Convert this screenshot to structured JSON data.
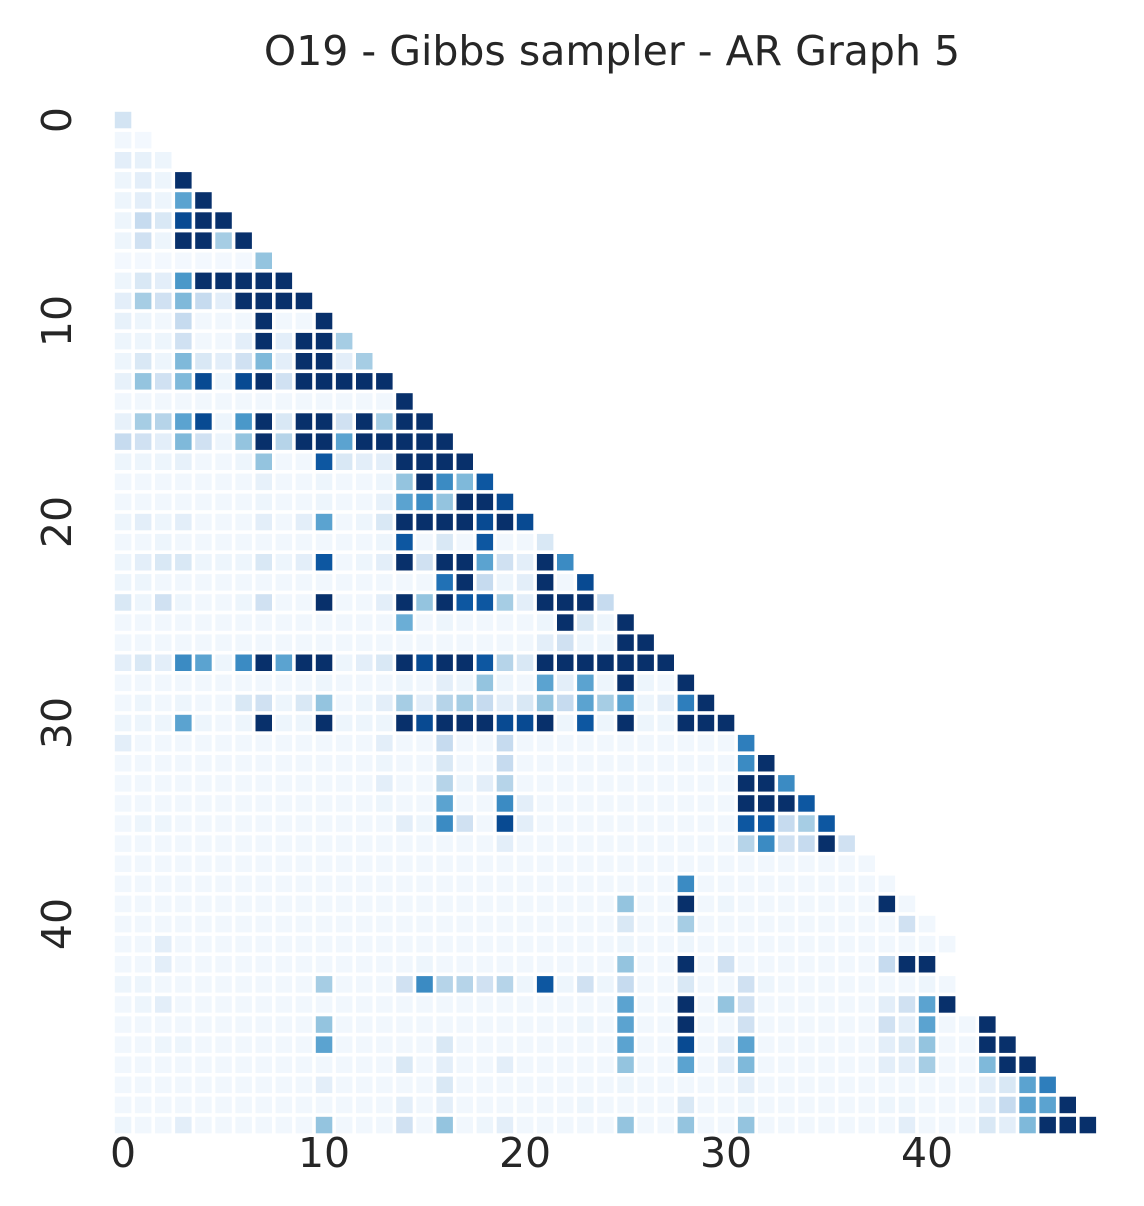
{
  "chart_data": {
    "type": "heatmap",
    "title": "O19 - Gibbs sampler - AR Graph 5",
    "xlabel": "",
    "ylabel": "",
    "n": 49,
    "mask": "upper-triangle",
    "colormap": "Blues",
    "color_range": [
      0,
      1
    ],
    "grid": false,
    "colorbar": false,
    "x_ticks": [
      "0",
      "10",
      "20",
      "30",
      "40"
    ],
    "y_ticks": [
      "0",
      "10",
      "20",
      "30",
      "40"
    ],
    "matrix_note": "values in [0,1]; row i has i+1 entries (lower triangle incl. diagonal)",
    "matrix": [
      [
        0.18
      ],
      [
        0.03,
        0.02
      ],
      [
        0.1,
        0.08,
        0.05
      ],
      [
        0.05,
        0.1,
        0.05,
        1.0
      ],
      [
        0.05,
        0.1,
        0.05,
        0.55,
        1.0
      ],
      [
        0.05,
        0.25,
        0.15,
        0.9,
        1.0,
        1.0
      ],
      [
        0.05,
        0.2,
        0.05,
        1.0,
        1.0,
        0.35,
        1.0
      ],
      [
        0.02,
        0.02,
        0.02,
        0.02,
        0.02,
        0.02,
        0.02,
        0.4
      ],
      [
        0.05,
        0.15,
        0.1,
        0.6,
        1.0,
        1.0,
        1.0,
        1.0,
        1.0
      ],
      [
        0.1,
        0.35,
        0.2,
        0.45,
        0.25,
        0.1,
        1.0,
        1.0,
        1.0,
        1.0
      ],
      [
        0.08,
        0.05,
        0.03,
        0.25,
        0.03,
        0.03,
        0.03,
        1.0,
        0.03,
        0.03,
        1.0
      ],
      [
        0.05,
        0.05,
        0.05,
        0.2,
        0.03,
        0.03,
        0.1,
        1.0,
        0.1,
        1.0,
        1.0,
        0.35
      ],
      [
        0.05,
        0.15,
        0.05,
        0.45,
        0.15,
        0.1,
        0.2,
        0.45,
        0.1,
        1.0,
        1.0,
        0.1,
        0.35
      ],
      [
        0.08,
        0.4,
        0.2,
        0.45,
        0.9,
        0.05,
        0.9,
        1.0,
        0.2,
        1.0,
        1.0,
        1.0,
        1.0,
        1.0
      ],
      [
        0.03,
        0.03,
        0.03,
        0.03,
        0.03,
        0.03,
        0.03,
        0.03,
        0.03,
        0.03,
        0.03,
        0.03,
        0.03,
        0.03,
        1.0
      ],
      [
        0.08,
        0.35,
        0.3,
        0.55,
        0.9,
        0.05,
        0.6,
        1.0,
        0.15,
        1.0,
        1.0,
        0.2,
        1.0,
        0.35,
        1.0,
        1.0
      ],
      [
        0.25,
        0.2,
        0.1,
        0.45,
        0.2,
        0.05,
        0.4,
        1.0,
        0.3,
        1.0,
        1.0,
        0.55,
        1.0,
        1.0,
        1.0,
        1.0,
        1.0
      ],
      [
        0.05,
        0.05,
        0.05,
        0.08,
        0.03,
        0.03,
        0.05,
        0.4,
        0.03,
        0.03,
        0.85,
        0.15,
        0.1,
        0.1,
        1.0,
        1.0,
        1.0,
        1.0
      ],
      [
        0.03,
        0.03,
        0.03,
        0.03,
        0.03,
        0.03,
        0.03,
        0.08,
        0.03,
        0.03,
        0.05,
        0.03,
        0.03,
        0.05,
        0.4,
        1.0,
        0.65,
        0.45,
        0.85
      ],
      [
        0.03,
        0.03,
        0.03,
        0.03,
        0.03,
        0.03,
        0.03,
        0.05,
        0.03,
        0.03,
        0.05,
        0.03,
        0.03,
        0.08,
        0.55,
        0.65,
        0.4,
        1.0,
        1.0,
        0.9
      ],
      [
        0.05,
        0.1,
        0.05,
        0.1,
        0.03,
        0.03,
        0.03,
        0.1,
        0.03,
        0.1,
        0.55,
        0.03,
        0.05,
        0.15,
        1.0,
        1.0,
        1.0,
        1.0,
        0.9,
        1.0,
        0.9
      ],
      [
        0.03,
        0.03,
        0.05,
        0.03,
        0.03,
        0.03,
        0.03,
        0.03,
        0.03,
        0.03,
        0.03,
        0.03,
        0.03,
        0.05,
        0.85,
        0.03,
        0.15,
        0.03,
        0.85,
        0.03,
        0.03,
        0.15
      ],
      [
        0.05,
        0.1,
        0.15,
        0.15,
        0.05,
        0.05,
        0.05,
        0.15,
        0.05,
        0.1,
        0.85,
        0.03,
        0.05,
        0.1,
        1.0,
        0.2,
        1.0,
        1.0,
        0.55,
        0.2,
        0.1,
        1.0,
        0.65
      ],
      [
        0.05,
        0.05,
        0.03,
        0.03,
        0.03,
        0.03,
        0.03,
        0.03,
        0.03,
        0.03,
        0.03,
        0.03,
        0.03,
        0.03,
        0.03,
        0.03,
        0.75,
        1.0,
        0.25,
        0.05,
        0.1,
        1.0,
        0.03,
        0.9
      ],
      [
        0.15,
        0.05,
        0.2,
        0.05,
        0.03,
        0.03,
        0.05,
        0.2,
        0.03,
        0.03,
        1.0,
        0.03,
        0.03,
        0.1,
        1.0,
        0.4,
        1.0,
        0.85,
        0.85,
        0.35,
        0.1,
        1.0,
        1.0,
        1.0,
        0.25
      ],
      [
        0.03,
        0.03,
        0.03,
        0.03,
        0.03,
        0.03,
        0.03,
        0.03,
        0.03,
        0.03,
        0.03,
        0.03,
        0.03,
        0.03,
        0.5,
        0.03,
        0.05,
        0.03,
        0.03,
        0.03,
        0.03,
        0.05,
        1.0,
        0.15,
        0.05,
        1.0
      ],
      [
        0.03,
        0.03,
        0.03,
        0.03,
        0.03,
        0.03,
        0.03,
        0.03,
        0.03,
        0.03,
        0.03,
        0.03,
        0.03,
        0.03,
        0.03,
        0.03,
        0.03,
        0.03,
        0.03,
        0.03,
        0.03,
        0.1,
        0.2,
        0.05,
        0.05,
        1.0,
        1.0
      ],
      [
        0.1,
        0.15,
        0.1,
        0.65,
        0.55,
        0.05,
        0.65,
        1.0,
        0.55,
        1.0,
        1.0,
        0.05,
        0.1,
        0.15,
        1.0,
        0.9,
        1.0,
        1.0,
        0.85,
        0.3,
        0.15,
        1.0,
        1.0,
        1.0,
        1.0,
        1.0,
        1.0,
        1.0
      ],
      [
        0.03,
        0.03,
        0.03,
        0.03,
        0.03,
        0.03,
        0.03,
        0.03,
        0.03,
        0.03,
        0.05,
        0.03,
        0.03,
        0.03,
        0.05,
        0.03,
        0.1,
        0.05,
        0.4,
        0.05,
        0.03,
        0.55,
        0.1,
        0.55,
        0.05,
        1.0,
        0.05,
        0.03,
        1.0
      ],
      [
        0.03,
        0.05,
        0.03,
        0.05,
        0.03,
        0.03,
        0.15,
        0.2,
        0.05,
        0.15,
        0.4,
        0.03,
        0.05,
        0.1,
        0.35,
        0.1,
        0.3,
        0.35,
        0.25,
        0.1,
        0.15,
        0.4,
        0.25,
        0.55,
        0.35,
        0.55,
        0.05,
        0.1,
        0.7,
        1.0
      ],
      [
        0.05,
        0.05,
        0.05,
        0.55,
        0.05,
        0.03,
        0.05,
        1.0,
        0.05,
        0.05,
        1.0,
        0.05,
        0.05,
        0.05,
        1.0,
        0.9,
        1.0,
        1.0,
        1.0,
        0.9,
        0.9,
        1.0,
        0.05,
        0.85,
        0.05,
        1.0,
        0.05,
        0.05,
        1.0,
        1.0,
        1.0
      ],
      [
        0.1,
        0.03,
        0.03,
        0.03,
        0.03,
        0.03,
        0.03,
        0.03,
        0.03,
        0.03,
        0.03,
        0.03,
        0.03,
        0.1,
        0.03,
        0.03,
        0.25,
        0.03,
        0.03,
        0.25,
        0.03,
        0.03,
        0.03,
        0.03,
        0.03,
        0.03,
        0.03,
        0.03,
        0.03,
        0.03,
        0.03,
        0.7
      ],
      [
        0.03,
        0.03,
        0.03,
        0.03,
        0.03,
        0.03,
        0.03,
        0.03,
        0.03,
        0.03,
        0.03,
        0.03,
        0.03,
        0.05,
        0.03,
        0.03,
        0.15,
        0.03,
        0.03,
        0.25,
        0.03,
        0.03,
        0.03,
        0.03,
        0.03,
        0.03,
        0.03,
        0.03,
        0.03,
        0.03,
        0.03,
        0.65,
        1.0
      ],
      [
        0.03,
        0.03,
        0.03,
        0.03,
        0.03,
        0.03,
        0.03,
        0.03,
        0.03,
        0.03,
        0.03,
        0.03,
        0.03,
        0.1,
        0.03,
        0.03,
        0.3,
        0.05,
        0.1,
        0.3,
        0.03,
        0.03,
        0.03,
        0.03,
        0.03,
        0.03,
        0.03,
        0.03,
        0.03,
        0.03,
        0.03,
        1.0,
        1.0,
        0.65
      ],
      [
        0.03,
        0.03,
        0.03,
        0.03,
        0.03,
        0.03,
        0.03,
        0.03,
        0.03,
        0.03,
        0.03,
        0.03,
        0.03,
        0.05,
        0.03,
        0.03,
        0.55,
        0.03,
        0.03,
        0.65,
        0.1,
        0.03,
        0.03,
        0.03,
        0.03,
        0.03,
        0.03,
        0.03,
        0.03,
        0.03,
        0.03,
        1.0,
        1.0,
        1.0,
        0.85
      ],
      [
        0.03,
        0.05,
        0.05,
        0.03,
        0.03,
        0.03,
        0.03,
        0.03,
        0.03,
        0.03,
        0.03,
        0.03,
        0.03,
        0.03,
        0.1,
        0.05,
        0.65,
        0.2,
        0.03,
        0.9,
        0.1,
        0.03,
        0.03,
        0.03,
        0.03,
        0.03,
        0.03,
        0.03,
        0.03,
        0.03,
        0.03,
        0.85,
        0.85,
        0.25,
        0.35,
        0.85
      ],
      [
        0.03,
        0.03,
        0.03,
        0.03,
        0.03,
        0.03,
        0.03,
        0.03,
        0.03,
        0.03,
        0.03,
        0.03,
        0.03,
        0.03,
        0.03,
        0.03,
        0.03,
        0.03,
        0.03,
        0.1,
        0.03,
        0.03,
        0.03,
        0.03,
        0.03,
        0.03,
        0.03,
        0.03,
        0.03,
        0.03,
        0.03,
        0.3,
        0.65,
        0.2,
        0.25,
        1.0,
        0.2
      ],
      [
        0.03,
        0.03,
        0.03,
        0.03,
        0.03,
        0.03,
        0.03,
        0.03,
        0.03,
        0.03,
        0.03,
        0.03,
        0.03,
        0.03,
        0.03,
        0.03,
        0.03,
        0.03,
        0.03,
        0.03,
        0.03,
        0.03,
        0.03,
        0.03,
        0.03,
        0.03,
        0.03,
        0.03,
        0.03,
        0.03,
        0.03,
        0.03,
        0.03,
        0.03,
        0.03,
        0.03,
        0.03,
        0.03
      ],
      [
        0.03,
        0.03,
        0.03,
        0.03,
        0.03,
        0.03,
        0.03,
        0.03,
        0.03,
        0.03,
        0.03,
        0.03,
        0.03,
        0.03,
        0.03,
        0.03,
        0.03,
        0.03,
        0.03,
        0.03,
        0.03,
        0.03,
        0.03,
        0.03,
        0.03,
        0.03,
        0.03,
        0.03,
        0.65,
        0.03,
        0.03,
        0.03,
        0.03,
        0.03,
        0.03,
        0.03,
        0.03,
        0.03,
        0.03
      ],
      [
        0.03,
        0.03,
        0.03,
        0.03,
        0.03,
        0.03,
        0.03,
        0.03,
        0.03,
        0.03,
        0.03,
        0.03,
        0.03,
        0.03,
        0.03,
        0.03,
        0.03,
        0.03,
        0.03,
        0.03,
        0.03,
        0.03,
        0.03,
        0.03,
        0.03,
        0.4,
        0.03,
        0.03,
        1.0,
        0.03,
        0.05,
        0.03,
        0.03,
        0.03,
        0.03,
        0.03,
        0.03,
        0.03,
        1.0,
        0.03
      ],
      [
        0.03,
        0.03,
        0.03,
        0.03,
        0.03,
        0.03,
        0.03,
        0.03,
        0.03,
        0.03,
        0.03,
        0.03,
        0.03,
        0.03,
        0.03,
        0.03,
        0.03,
        0.03,
        0.03,
        0.03,
        0.03,
        0.03,
        0.03,
        0.03,
        0.03,
        0.15,
        0.03,
        0.03,
        0.35,
        0.03,
        0.03,
        0.03,
        0.03,
        0.03,
        0.03,
        0.03,
        0.03,
        0.03,
        0.03,
        0.2,
        0.03
      ],
      [
        0.03,
        0.03,
        0.1,
        0.03,
        0.03,
        0.03,
        0.03,
        0.03,
        0.03,
        0.03,
        0.03,
        0.03,
        0.03,
        0.03,
        0.03,
        0.03,
        0.03,
        0.03,
        0.03,
        0.03,
        0.03,
        0.03,
        0.03,
        0.03,
        0.03,
        0.05,
        0.03,
        0.03,
        0.05,
        0.03,
        0.03,
        0.03,
        0.03,
        0.03,
        0.03,
        0.03,
        0.03,
        0.03,
        0.03,
        0.03,
        0.03,
        0.03
      ],
      [
        0.03,
        0.03,
        0.1,
        0.03,
        0.03,
        0.03,
        0.03,
        0.03,
        0.03,
        0.03,
        0.03,
        0.03,
        0.03,
        0.03,
        0.03,
        0.05,
        0.03,
        0.03,
        0.03,
        0.03,
        0.03,
        0.03,
        0.03,
        0.03,
        0.03,
        0.4,
        0.03,
        0.03,
        1.0,
        0.03,
        0.2,
        0.03,
        0.03,
        0.03,
        0.03,
        0.03,
        0.03,
        0.03,
        0.25,
        1.0,
        1.0
      ],
      [
        0.05,
        0.05,
        0.03,
        0.03,
        0.03,
        0.03,
        0.03,
        0.03,
        0.03,
        0.03,
        0.35,
        0.03,
        0.03,
        0.03,
        0.2,
        0.65,
        0.3,
        0.3,
        0.2,
        0.3,
        0.05,
        0.85,
        0.05,
        0.2,
        0.05,
        0.25,
        0.03,
        0.03,
        0.15,
        0.03,
        0.03,
        0.2,
        0.05,
        0.03,
        0.03,
        0.03,
        0.03,
        0.03,
        0.03,
        0.03,
        0.05,
        0.03
      ],
      [
        0.03,
        0.05,
        0.1,
        0.03,
        0.03,
        0.03,
        0.03,
        0.03,
        0.03,
        0.03,
        0.03,
        0.03,
        0.03,
        0.03,
        0.03,
        0.03,
        0.03,
        0.03,
        0.03,
        0.03,
        0.03,
        0.03,
        0.03,
        0.03,
        0.03,
        0.55,
        0.03,
        0.03,
        1.0,
        0.03,
        0.4,
        0.2,
        0.03,
        0.03,
        0.03,
        0.03,
        0.03,
        0.03,
        0.1,
        0.2,
        0.55,
        1.0
      ],
      [
        0.03,
        0.03,
        0.03,
        0.03,
        0.03,
        0.03,
        0.03,
        0.03,
        0.03,
        0.03,
        0.4,
        0.03,
        0.03,
        0.03,
        0.03,
        0.03,
        0.03,
        0.03,
        0.03,
        0.03,
        0.03,
        0.03,
        0.03,
        0.05,
        0.03,
        0.55,
        0.03,
        0.03,
        1.0,
        0.03,
        0.03,
        0.2,
        0.03,
        0.03,
        0.03,
        0.03,
        0.03,
        0.03,
        0.2,
        0.1,
        0.55,
        0.03,
        0.03,
        1.0
      ],
      [
        0.03,
        0.03,
        0.05,
        0.05,
        0.03,
        0.03,
        0.03,
        0.03,
        0.03,
        0.03,
        0.55,
        0.03,
        0.03,
        0.03,
        0.03,
        0.03,
        0.15,
        0.03,
        0.03,
        0.03,
        0.03,
        0.03,
        0.03,
        0.03,
        0.03,
        0.55,
        0.03,
        0.03,
        0.9,
        0.03,
        0.1,
        0.55,
        0.03,
        0.03,
        0.03,
        0.03,
        0.03,
        0.03,
        0.1,
        0.15,
        0.4,
        0.03,
        0.03,
        1.0,
        1.0
      ],
      [
        0.03,
        0.03,
        0.03,
        0.03,
        0.03,
        0.03,
        0.03,
        0.03,
        0.03,
        0.03,
        0.03,
        0.03,
        0.03,
        0.03,
        0.15,
        0.03,
        0.1,
        0.03,
        0.03,
        0.1,
        0.03,
        0.03,
        0.03,
        0.03,
        0.03,
        0.4,
        0.03,
        0.03,
        0.55,
        0.03,
        0.1,
        0.45,
        0.03,
        0.03,
        0.03,
        0.03,
        0.03,
        0.03,
        0.1,
        0.1,
        0.35,
        0.03,
        0.03,
        0.45,
        1.0,
        1.0
      ],
      [
        0.03,
        0.03,
        0.03,
        0.03,
        0.03,
        0.03,
        0.03,
        0.03,
        0.03,
        0.03,
        0.1,
        0.03,
        0.03,
        0.03,
        0.03,
        0.03,
        0.15,
        0.03,
        0.03,
        0.03,
        0.03,
        0.03,
        0.03,
        0.03,
        0.03,
        0.05,
        0.03,
        0.03,
        0.03,
        0.03,
        0.03,
        0.1,
        0.03,
        0.03,
        0.03,
        0.03,
        0.03,
        0.03,
        0.03,
        0.03,
        0.03,
        0.03,
        0.03,
        0.1,
        0.15,
        0.55,
        0.7
      ],
      [
        0.03,
        0.03,
        0.03,
        0.03,
        0.03,
        0.03,
        0.03,
        0.03,
        0.03,
        0.03,
        0.03,
        0.03,
        0.03,
        0.03,
        0.1,
        0.03,
        0.1,
        0.03,
        0.03,
        0.03,
        0.03,
        0.03,
        0.03,
        0.05,
        0.03,
        0.03,
        0.03,
        0.03,
        0.15,
        0.03,
        0.03,
        0.05,
        0.03,
        0.03,
        0.03,
        0.03,
        0.03,
        0.03,
        0.05,
        0.05,
        0.03,
        0.03,
        0.03,
        0.1,
        0.25,
        0.55,
        0.55,
        1.0
      ],
      [
        0.05,
        0.03,
        0.03,
        0.1,
        0.03,
        0.03,
        0.03,
        0.03,
        0.03,
        0.03,
        0.4,
        0.03,
        0.03,
        0.03,
        0.2,
        0.03,
        0.4,
        0.03,
        0.05,
        0.1,
        0.03,
        0.03,
        0.03,
        0.03,
        0.03,
        0.4,
        0.03,
        0.03,
        0.4,
        0.03,
        0.03,
        0.4,
        0.03,
        0.03,
        0.03,
        0.03,
        0.03,
        0.03,
        0.03,
        0.1,
        0.03,
        0.03,
        0.03,
        0.15,
        0.1,
        0.45,
        1.0,
        1.0,
        1.0
      ]
    ]
  }
}
